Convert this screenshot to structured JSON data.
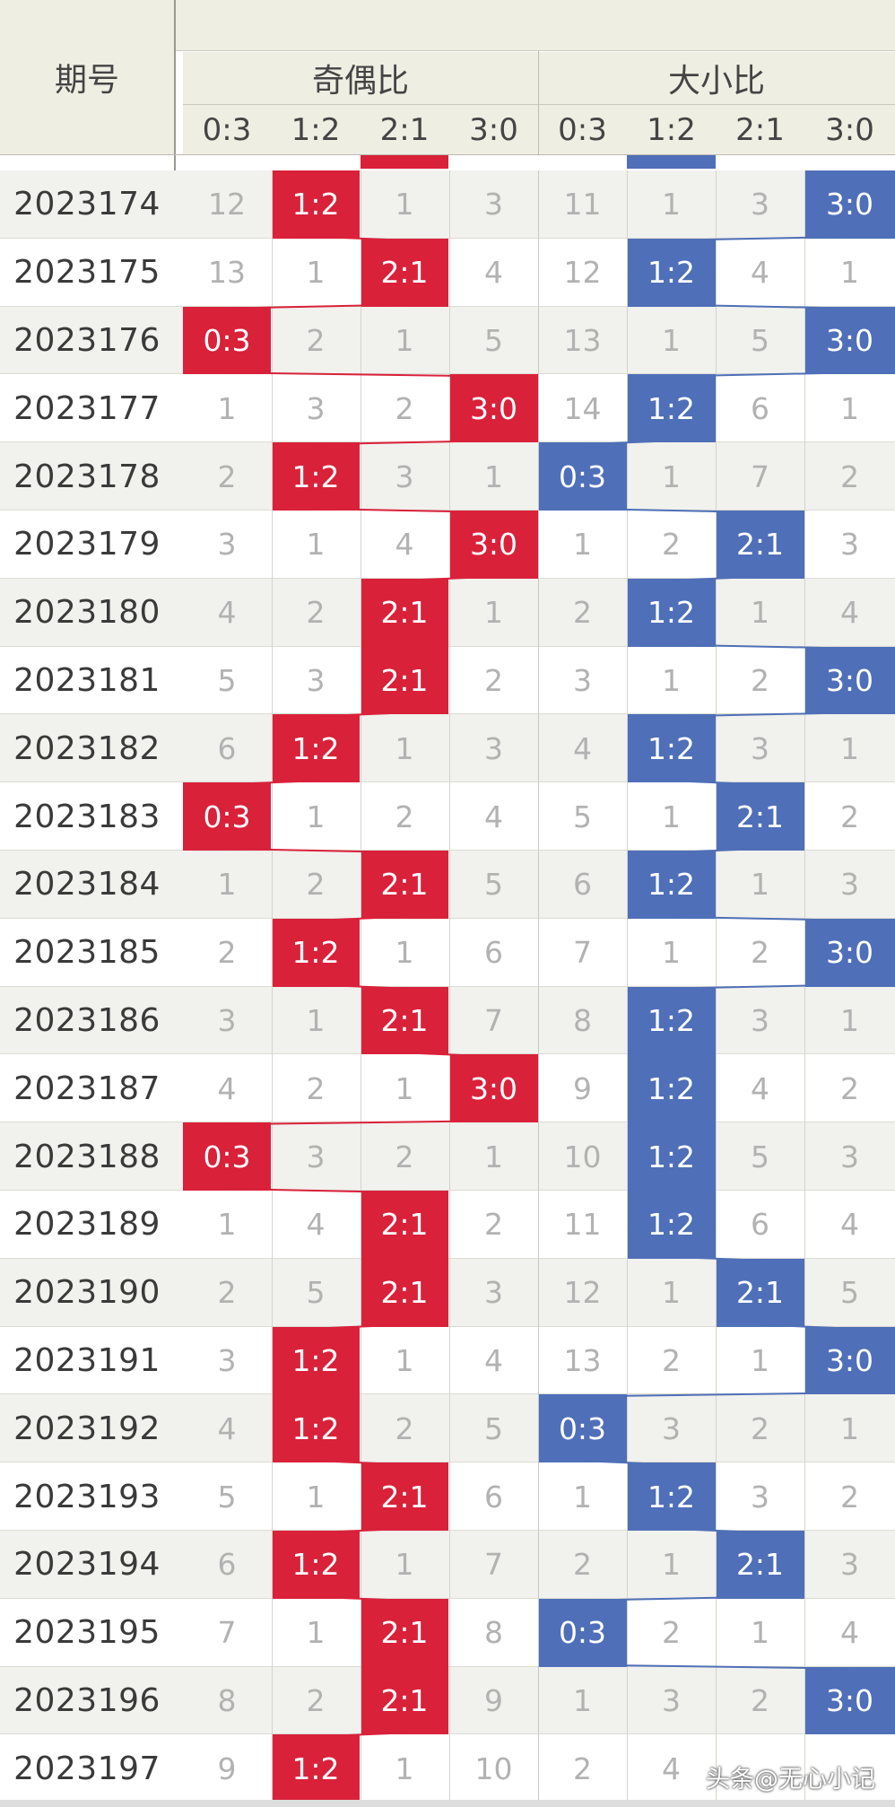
{
  "table": {
    "period_header": "期号",
    "groups": [
      {
        "title": "奇偶比",
        "columns": [
          "0:3",
          "1:2",
          "2:1",
          "3:0"
        ],
        "color": "#d9213a"
      },
      {
        "title": "大小比",
        "columns": [
          "0:3",
          "1:2",
          "2:1",
          "3:0"
        ],
        "color": "#4f6fb8"
      }
    ],
    "rows": [
      {
        "period": "2023174",
        "odd_even": [
          "12",
          "1:2",
          "1",
          "3"
        ],
        "big_small": [
          "11",
          "1",
          "3",
          "3:0"
        ]
      },
      {
        "period": "2023175",
        "odd_even": [
          "13",
          "1",
          "2:1",
          "4"
        ],
        "big_small": [
          "12",
          "1:2",
          "4",
          "1"
        ]
      },
      {
        "period": "2023176",
        "odd_even": [
          "0:3",
          "2",
          "1",
          "5"
        ],
        "big_small": [
          "13",
          "1",
          "5",
          "3:0"
        ]
      },
      {
        "period": "2023177",
        "odd_even": [
          "1",
          "3",
          "2",
          "3:0"
        ],
        "big_small": [
          "14",
          "1:2",
          "6",
          "1"
        ]
      },
      {
        "period": "2023178",
        "odd_even": [
          "2",
          "1:2",
          "3",
          "1"
        ],
        "big_small": [
          "0:3",
          "1",
          "7",
          "2"
        ]
      },
      {
        "period": "2023179",
        "odd_even": [
          "3",
          "1",
          "4",
          "3:0"
        ],
        "big_small": [
          "1",
          "2",
          "2:1",
          "3"
        ]
      },
      {
        "period": "2023180",
        "odd_even": [
          "4",
          "2",
          "2:1",
          "1"
        ],
        "big_small": [
          "2",
          "1:2",
          "1",
          "4"
        ]
      },
      {
        "period": "2023181",
        "odd_even": [
          "5",
          "3",
          "2:1",
          "2"
        ],
        "big_small": [
          "3",
          "1",
          "2",
          "3:0"
        ]
      },
      {
        "period": "2023182",
        "odd_even": [
          "6",
          "1:2",
          "1",
          "3"
        ],
        "big_small": [
          "4",
          "1:2",
          "3",
          "1"
        ]
      },
      {
        "period": "2023183",
        "odd_even": [
          "0:3",
          "1",
          "2",
          "4"
        ],
        "big_small": [
          "5",
          "1",
          "2:1",
          "2"
        ]
      },
      {
        "period": "2023184",
        "odd_even": [
          "1",
          "2",
          "2:1",
          "5"
        ],
        "big_small": [
          "6",
          "1:2",
          "1",
          "3"
        ]
      },
      {
        "period": "2023185",
        "odd_even": [
          "2",
          "1:2",
          "1",
          "6"
        ],
        "big_small": [
          "7",
          "1",
          "2",
          "3:0"
        ]
      },
      {
        "period": "2023186",
        "odd_even": [
          "3",
          "1",
          "2:1",
          "7"
        ],
        "big_small": [
          "8",
          "1:2",
          "3",
          "1"
        ]
      },
      {
        "period": "2023187",
        "odd_even": [
          "4",
          "2",
          "1",
          "3:0"
        ],
        "big_small": [
          "9",
          "1:2",
          "4",
          "2"
        ]
      },
      {
        "period": "2023188",
        "odd_even": [
          "0:3",
          "3",
          "2",
          "1"
        ],
        "big_small": [
          "10",
          "1:2",
          "5",
          "3"
        ]
      },
      {
        "period": "2023189",
        "odd_even": [
          "1",
          "4",
          "2:1",
          "2"
        ],
        "big_small": [
          "11",
          "1:2",
          "6",
          "4"
        ]
      },
      {
        "period": "2023190",
        "odd_even": [
          "2",
          "5",
          "2:1",
          "3"
        ],
        "big_small": [
          "12",
          "1",
          "2:1",
          "5"
        ]
      },
      {
        "period": "2023191",
        "odd_even": [
          "3",
          "1:2",
          "1",
          "4"
        ],
        "big_small": [
          "13",
          "2",
          "1",
          "3:0"
        ]
      },
      {
        "period": "2023192",
        "odd_even": [
          "4",
          "1:2",
          "2",
          "5"
        ],
        "big_small": [
          "0:3",
          "3",
          "2",
          "1"
        ]
      },
      {
        "period": "2023193",
        "odd_even": [
          "5",
          "1",
          "2:1",
          "6"
        ],
        "big_small": [
          "1",
          "1:2",
          "3",
          "2"
        ]
      },
      {
        "period": "2023194",
        "odd_even": [
          "6",
          "1:2",
          "1",
          "7"
        ],
        "big_small": [
          "2",
          "1",
          "2:1",
          "3"
        ]
      },
      {
        "period": "2023195",
        "odd_even": [
          "7",
          "1",
          "2:1",
          "8"
        ],
        "big_small": [
          "0:3",
          "2",
          "1",
          "4"
        ]
      },
      {
        "period": "2023196",
        "odd_even": [
          "8",
          "2",
          "2:1",
          "9"
        ],
        "big_small": [
          "1",
          "3",
          "2",
          "3:0"
        ]
      },
      {
        "period": "2023197",
        "odd_even": [
          "9",
          "1:2",
          "1",
          "10"
        ],
        "big_small": [
          "2",
          "4",
          "",
          ""
        ]
      }
    ]
  },
  "watermark": "头条@无心小记",
  "colors": {
    "header_bg": "#efeee3",
    "row_alt_bg": "#f1f1ed",
    "miss_text": "#b2b2b2"
  }
}
